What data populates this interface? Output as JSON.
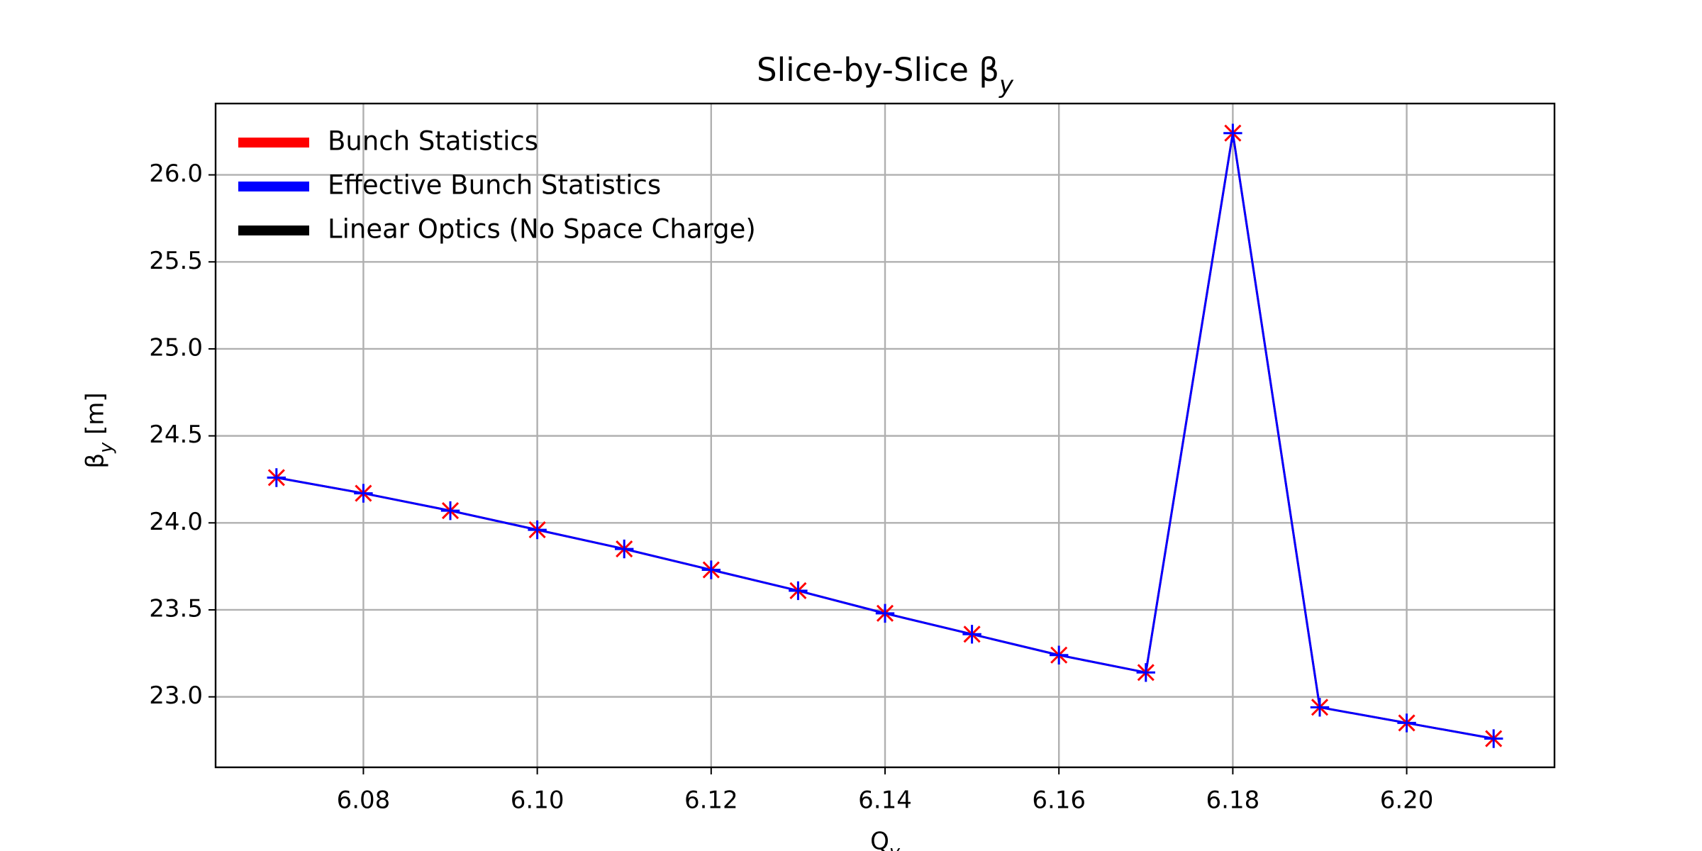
{
  "chart_data": {
    "type": "line",
    "title": "Slice-by-Slice βy",
    "xlabel": "Qy",
    "ylabel": "βy [m]",
    "x": [
      6.07,
      6.08,
      6.09,
      6.1,
      6.11,
      6.12,
      6.13,
      6.14,
      6.15,
      6.16,
      6.17,
      6.18,
      6.19,
      6.2,
      6.21
    ],
    "series": [
      {
        "name": "Bunch Statistics",
        "color": "#ff0000",
        "marker": "x",
        "values": [
          24.26,
          24.17,
          24.07,
          23.96,
          23.85,
          23.73,
          23.61,
          23.48,
          23.36,
          23.24,
          23.14,
          26.24,
          22.94,
          22.85,
          22.76
        ]
      },
      {
        "name": "Effective Bunch Statistics",
        "color": "#0000ff",
        "marker": "+",
        "values": [
          24.26,
          24.17,
          24.07,
          23.96,
          23.85,
          23.73,
          23.61,
          23.48,
          23.36,
          23.24,
          23.14,
          26.24,
          22.94,
          22.85,
          22.76
        ]
      },
      {
        "name": "Linear Optics (No Space Charge)",
        "color": "#000000"
      }
    ],
    "xlim": [
      6.063,
      6.217
    ],
    "xticks": [
      6.08,
      {
        "value": 6.1,
        "label": "6.10"
      },
      6.12,
      6.14,
      6.16,
      6.18,
      {
        "value": 6.2,
        "label": "6.20"
      }
    ],
    "ylim": [
      22.595,
      26.41
    ],
    "yticks": [
      {
        "value": 23,
        "label": "23.0"
      },
      23.5,
      {
        "value": 24,
        "label": "24.0"
      },
      24.5,
      {
        "value": 25,
        "label": "25.0"
      },
      25.5,
      {
        "value": 26,
        "label": "26.0"
      }
    ],
    "grid": true,
    "legend": "upper left"
  }
}
